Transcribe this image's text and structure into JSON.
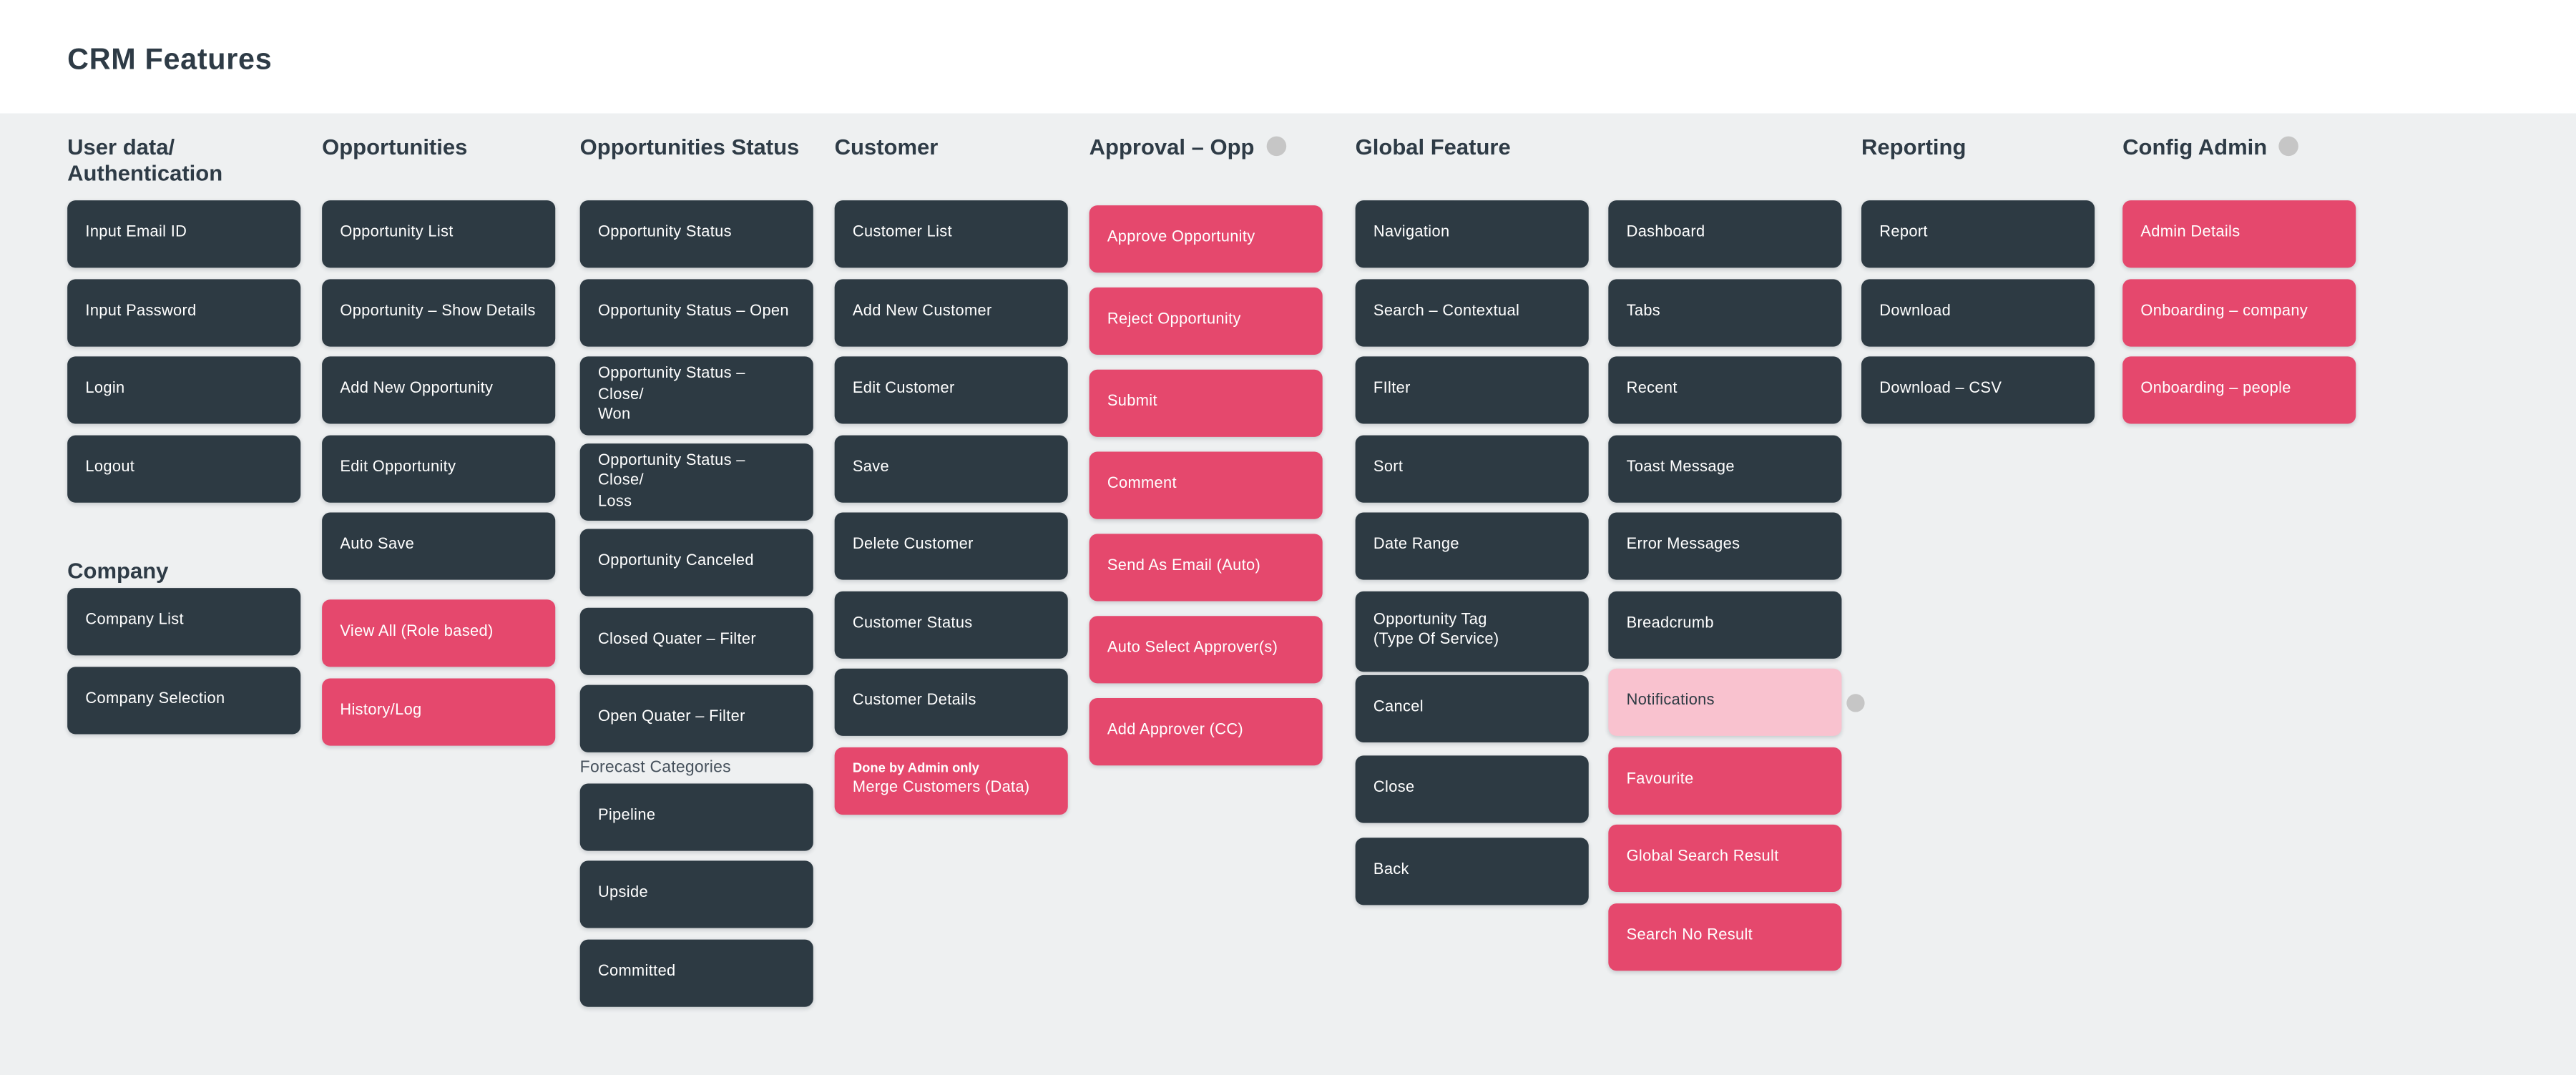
{
  "page": {
    "title": "CRM Features"
  },
  "colors": {
    "dark_block": "#2d3a43",
    "pink_block": "#e5486d",
    "pink_light_block": "#f9c2cf",
    "status_dot_gray": "#c6c6c6",
    "heading_text": "#2e3b46",
    "canvas_background": "#eef0f1",
    "topbar_background": "#ffffff"
  },
  "columns": [
    {
      "id": "user-data-authentication",
      "header": "User data/\nAuthentication",
      "header_dot": false,
      "groups": [
        {
          "label": null,
          "items": [
            {
              "label": "Input Email ID",
              "variant": "dark"
            },
            {
              "label": "Input Password",
              "variant": "dark"
            },
            {
              "label": "Login",
              "variant": "dark"
            },
            {
              "label": "Logout",
              "variant": "dark"
            }
          ]
        },
        {
          "label": "Company",
          "label_variant": "section",
          "items": [
            {
              "label": "Company List",
              "variant": "dark"
            },
            {
              "label": "Company Selection",
              "variant": "dark"
            }
          ]
        }
      ]
    },
    {
      "id": "opportunities",
      "header": "Opportunities",
      "header_dot": false,
      "groups": [
        {
          "label": null,
          "items": [
            {
              "label": "Opportunity List",
              "variant": "dark"
            },
            {
              "label": "Opportunity – Show Details",
              "variant": "dark"
            },
            {
              "label": "Add New Opportunity",
              "variant": "dark"
            },
            {
              "label": "Edit Opportunity",
              "variant": "dark"
            },
            {
              "label": "Auto Save",
              "variant": "dark"
            },
            {
              "label": "View All (Role based)",
              "variant": "pink",
              "gap": 12
            },
            {
              "label": "History/Log",
              "variant": "pink"
            }
          ]
        }
      ]
    },
    {
      "id": "opportunities-status",
      "header": "Opportunities Status",
      "header_dot": false,
      "groups": [
        {
          "label": null,
          "items": [
            {
              "label": "Opportunity Status",
              "variant": "dark"
            },
            {
              "label": "Opportunity Status – Open",
              "variant": "dark"
            },
            {
              "label": "Opportunity Status – Close/\nWon",
              "variant": "dark",
              "tall": true
            },
            {
              "label": "Opportunity Status – Close/\nLoss",
              "variant": "dark",
              "tall": true,
              "gap": 5
            },
            {
              "label": "Opportunity Canceled",
              "variant": "dark",
              "gap": 5
            },
            {
              "label": "Closed Quater – Filter",
              "variant": "dark"
            },
            {
              "label": "Open Quater – Filter",
              "variant": "dark"
            }
          ]
        },
        {
          "label": "Forecast Categories",
          "label_variant": "caption",
          "items": [
            {
              "label": "Pipeline",
              "variant": "dark"
            },
            {
              "label": "Upside",
              "variant": "dark"
            },
            {
              "label": "Committed",
              "variant": "dark"
            }
          ]
        }
      ]
    },
    {
      "id": "customer",
      "header": "Customer",
      "header_dot": false,
      "groups": [
        {
          "label": null,
          "items": [
            {
              "label": "Customer List",
              "variant": "dark"
            },
            {
              "label": "Add New Customer",
              "variant": "dark"
            },
            {
              "label": "Edit Customer",
              "variant": "dark"
            },
            {
              "label": "Save",
              "variant": "dark"
            },
            {
              "label": "Delete Customer",
              "variant": "dark"
            },
            {
              "label": "Customer Status",
              "variant": "dark"
            },
            {
              "label": "Customer Details",
              "variant": "dark"
            },
            {
              "label": "Merge Customers (Data)",
              "variant": "pink",
              "note": "Done by Admin only"
            }
          ]
        }
      ]
    },
    {
      "id": "approval-opp",
      "header": "Approval – Opp",
      "header_dot": true,
      "loose": true,
      "groups": [
        {
          "label": null,
          "items": [
            {
              "label": "Approve Opportunity",
              "variant": "pink"
            },
            {
              "label": "Reject Opportunity",
              "variant": "pink"
            },
            {
              "label": "Submit",
              "variant": "pink"
            },
            {
              "label": "Comment",
              "variant": "pink"
            },
            {
              "label": "Send As Email (Auto)",
              "variant": "pink"
            },
            {
              "label": "Auto Select Approver(s)",
              "variant": "pink"
            },
            {
              "label": "Add Approver (CC)",
              "variant": "pink"
            }
          ]
        }
      ]
    },
    {
      "id": "global-feature",
      "header": "Global Feature",
      "header_dot": false,
      "groups": [
        {
          "label": null,
          "items": [
            {
              "label": "Navigation",
              "variant": "dark"
            },
            {
              "label": "Search – Contextual",
              "variant": "dark"
            },
            {
              "label": "FIlter",
              "variant": "dark"
            },
            {
              "label": "Sort",
              "variant": "dark"
            },
            {
              "label": "Date Range",
              "variant": "dark"
            },
            {
              "label": "Opportunity Tag\n(Type Of Service)",
              "variant": "dark",
              "tall2": true
            },
            {
              "label": "Cancel",
              "variant": "dark",
              "gap": 2
            },
            {
              "label": "Close",
              "variant": "dark",
              "gap": 8.5
            },
            {
              "label": "Back",
              "variant": "dark",
              "gap": 8.5
            }
          ]
        }
      ]
    },
    {
      "id": "global-feature-extra",
      "header": "",
      "header_dot": false,
      "groups": [
        {
          "label": null,
          "items": [
            {
              "label": "Dashboard",
              "variant": "dark"
            },
            {
              "label": "Tabs",
              "variant": "dark"
            },
            {
              "label": "Recent",
              "variant": "dark"
            },
            {
              "label": "Toast Message",
              "variant": "dark"
            },
            {
              "label": "Error Messages",
              "variant": "dark"
            },
            {
              "label": "Breadcrumb",
              "variant": "dark"
            },
            {
              "label": "Notifications",
              "variant": "pinkLight",
              "dot": true
            },
            {
              "label": "Favourite",
              "variant": "pink"
            },
            {
              "label": "Global Search Result",
              "variant": "pink"
            },
            {
              "label": "Search No Result",
              "variant": "pink"
            }
          ]
        }
      ]
    },
    {
      "id": "reporting",
      "header": "Reporting",
      "header_dot": false,
      "groups": [
        {
          "label": null,
          "items": [
            {
              "label": "Report",
              "variant": "dark"
            },
            {
              "label": "Download",
              "variant": "dark"
            },
            {
              "label": "Download – CSV",
              "variant": "dark"
            }
          ]
        }
      ]
    },
    {
      "id": "config-admin",
      "header": "Config Admin",
      "header_dot": true,
      "groups": [
        {
          "label": null,
          "items": [
            {
              "label": "Admin Details",
              "variant": "pink"
            },
            {
              "label": "Onboarding – company",
              "variant": "pink"
            },
            {
              "label": "Onboarding – people",
              "variant": "pink"
            }
          ]
        }
      ]
    }
  ]
}
